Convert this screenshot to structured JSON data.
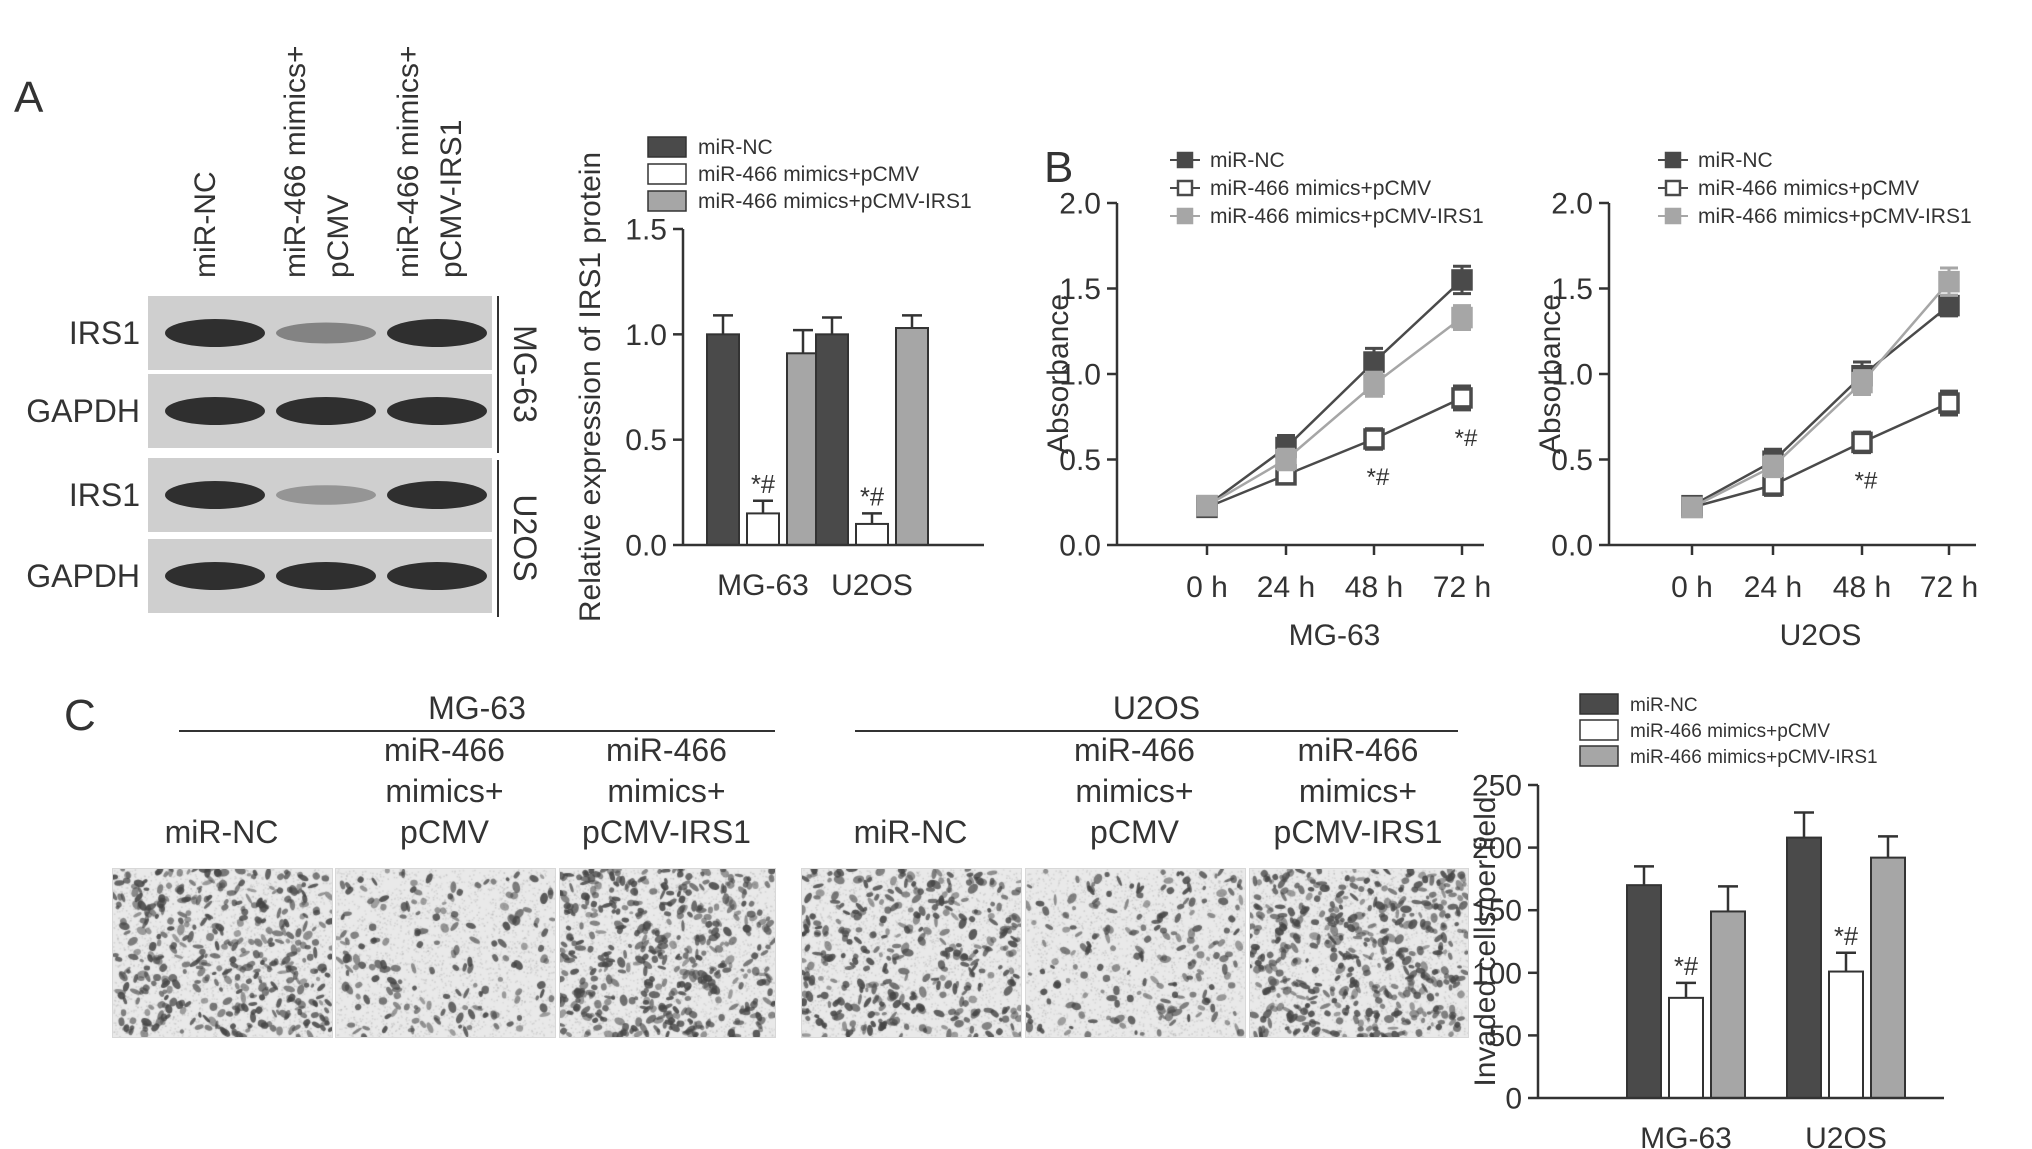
{
  "panels": {
    "A": "A",
    "B": "B",
    "C": "C"
  },
  "legend": [
    "miR-NC",
    "miR-466 mimics+pCMV",
    "miR-466 mimics+pCMV-IRS1"
  ],
  "colors": {
    "nc": "#4a4a4a",
    "pcmv": "#ffffff",
    "irs1": "#a6a6a6",
    "axis": "#333333",
    "blot_bg": "#cfcfcf",
    "band": "#2f2f2f"
  },
  "blot": {
    "lanes": [
      [
        "miR-NC"
      ],
      [
        "miR-466 mimics+",
        "pCMV"
      ],
      [
        "miR-466 mimics+",
        "pCMV-IRS1"
      ]
    ],
    "rows": [
      "IRS1",
      "GAPDH",
      "IRS1",
      "GAPDH"
    ],
    "cells": [
      "MG-63",
      "U2OS"
    ],
    "band_intensity": [
      [
        1.0,
        0.3,
        1.0
      ],
      [
        1.0,
        1.0,
        1.0
      ],
      [
        1.0,
        0.15,
        1.0
      ],
      [
        1.0,
        1.0,
        1.0
      ]
    ]
  },
  "micrographs": {
    "groups": [
      {
        "cell": "MG-63",
        "labels": [
          [
            "miR-NC"
          ],
          [
            "miR-466",
            "mimics+",
            "pCMV"
          ],
          [
            "miR-466",
            "mimics+",
            "pCMV-IRS1"
          ]
        ],
        "density": [
          0.85,
          0.35,
          0.9
        ]
      },
      {
        "cell": "U2OS",
        "labels": [
          [
            "miR-NC"
          ],
          [
            "miR-466",
            "mimics+",
            "pCMV"
          ],
          [
            "miR-466",
            "mimics+",
            "pCMV-IRS1"
          ]
        ],
        "density": [
          0.75,
          0.4,
          0.95
        ]
      }
    ]
  },
  "chart_data": [
    {
      "type": "bar",
      "panel": "A",
      "categories": [
        "MG-63",
        "U2OS"
      ],
      "series": [
        {
          "name": "miR-NC",
          "values": [
            1.0,
            1.0
          ],
          "errors": [
            0.09,
            0.08
          ]
        },
        {
          "name": "miR-466 mimics+pCMV",
          "values": [
            0.15,
            0.1
          ],
          "errors": [
            0.06,
            0.05
          ]
        },
        {
          "name": "miR-466 mimics+pCMV-IRS1",
          "values": [
            0.91,
            1.03
          ],
          "errors": [
            0.11,
            0.06
          ]
        }
      ],
      "ylabel": "Relative expression of IRS1 protein",
      "ylim": [
        0,
        1.5
      ],
      "yticks": [
        "0.0",
        "0.5",
        "1.0",
        "1.5"
      ],
      "annotations": [
        "*#",
        "*#"
      ],
      "legend_position": "top"
    },
    {
      "type": "line",
      "panel": "B",
      "x": [
        "0 h",
        "24 h",
        "48 h",
        "72 h"
      ],
      "series": [
        {
          "name": "miR-NC",
          "values": [
            0.23,
            0.57,
            1.07,
            1.55
          ],
          "errors": [
            0.05,
            0.07,
            0.08,
            0.08
          ]
        },
        {
          "name": "miR-466 mimics+pCMV",
          "values": [
            0.22,
            0.41,
            0.62,
            0.86
          ],
          "errors": [
            0.05,
            0.05,
            0.06,
            0.07
          ]
        },
        {
          "name": "miR-466 mimics+pCMV-IRS1",
          "values": [
            0.23,
            0.5,
            0.94,
            1.33
          ],
          "errors": [
            0.05,
            0.06,
            0.07,
            0.07
          ]
        }
      ],
      "xlabel": "MG-63",
      "ylabel": "Absorbance",
      "ylim": [
        0,
        2.0
      ],
      "yticks": [
        "0.0",
        "0.5",
        "1.0",
        "1.5",
        "2.0"
      ],
      "annotations": [
        "*#",
        "*#"
      ],
      "legend_position": "top"
    },
    {
      "type": "line",
      "panel": "B",
      "x": [
        "0 h",
        "24 h",
        "48 h",
        "72 h"
      ],
      "series": [
        {
          "name": "miR-NC",
          "values": [
            0.23,
            0.49,
            0.99,
            1.4
          ],
          "errors": [
            0.05,
            0.07,
            0.08,
            0.06
          ]
        },
        {
          "name": "miR-466 mimics+pCMV",
          "values": [
            0.22,
            0.35,
            0.6,
            0.83
          ],
          "errors": [
            0.05,
            0.06,
            0.06,
            0.07
          ]
        },
        {
          "name": "miR-466 mimics+pCMV-IRS1",
          "values": [
            0.22,
            0.46,
            0.95,
            1.54
          ],
          "errors": [
            0.05,
            0.06,
            0.07,
            0.08
          ]
        }
      ],
      "xlabel": "U2OS",
      "ylabel": "Absorbance",
      "ylim": [
        0,
        2.0
      ],
      "yticks": [
        "0.0",
        "0.5",
        "1.0",
        "1.5",
        "2.0"
      ],
      "annotations": [
        "*#"
      ],
      "legend_position": "top"
    },
    {
      "type": "bar",
      "panel": "C",
      "categories": [
        "MG-63",
        "U2OS"
      ],
      "series": [
        {
          "name": "miR-NC",
          "values": [
            170,
            208
          ],
          "errors": [
            15,
            20
          ]
        },
        {
          "name": "miR-466 mimics+pCMV",
          "values": [
            80,
            101
          ],
          "errors": [
            12,
            15
          ]
        },
        {
          "name": "miR-466 mimics+pCMV-IRS1",
          "values": [
            149,
            192
          ],
          "errors": [
            20,
            17
          ]
        }
      ],
      "ylabel": "Invaded cells/per field",
      "ylim": [
        0,
        250
      ],
      "yticks": [
        "0",
        "50",
        "100",
        "150",
        "200",
        "250"
      ],
      "annotations": [
        "*#",
        "*#"
      ],
      "legend_position": "top"
    }
  ]
}
